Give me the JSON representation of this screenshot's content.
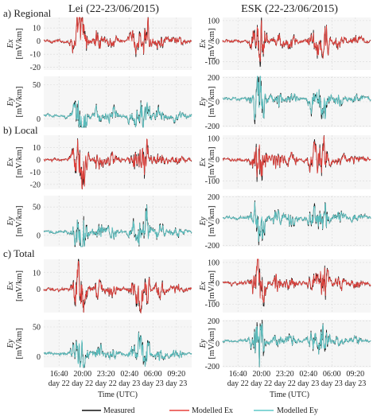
{
  "chart_data": {
    "type": "line",
    "columns": [
      {
        "id": "lei",
        "title": "Lei (22-23/06/2015)"
      },
      {
        "id": "esk",
        "title": "ESK (22-23/06/2015)"
      }
    ],
    "sections": [
      {
        "id": "regional",
        "label": "a) Regional"
      },
      {
        "id": "local",
        "label": "b) Local"
      },
      {
        "id": "total",
        "label": "c) Total"
      }
    ],
    "components": [
      {
        "id": "ex",
        "label_top": "Ex",
        "label_bottom": "[mV/km]",
        "model_color": "#e8413c"
      },
      {
        "id": "ey",
        "label_top": "Ey",
        "label_bottom": "[mV/km]",
        "model_color": "#5fc8c8"
      }
    ],
    "measured_color": "#111111",
    "x_ticks": [
      {
        "time": "16:40",
        "day": "day 22"
      },
      {
        "time": "20:00",
        "day": "day 22"
      },
      {
        "time": "23:20",
        "day": "day 22"
      },
      {
        "time": "02:40",
        "day": "day 23"
      },
      {
        "time": "06:00",
        "day": "day 23"
      },
      {
        "time": "09:20",
        "day": "day 23"
      }
    ],
    "x_range_hours": [
      14.5,
      35.5
    ],
    "x_tick_hours": [
      16.667,
      20.0,
      23.333,
      26.667,
      30.0,
      33.333
    ],
    "xlabel": "Time (UTC)",
    "panels": {
      "lei": {
        "regional": {
          "ex": {
            "ylim": [
              -22,
              18
            ],
            "yticks": [
              10,
              0,
              -10,
              -20
            ]
          },
          "ey": {
            "ylim": [
              -12,
              62
            ],
            "yticks": [
              50,
              0
            ]
          }
        },
        "local": {
          "ex": {
            "ylim": [
              -24,
              20
            ],
            "yticks": [
              10,
              0,
              -10,
              -20
            ]
          },
          "ey": {
            "ylim": [
              -20,
              70
            ],
            "yticks": [
              50,
              0
            ]
          }
        },
        "total": {
          "ex": {
            "ylim": [
              -14,
              18
            ],
            "yticks": [
              10,
              0
            ]
          },
          "ey": {
            "ylim": [
              -18,
              62
            ],
            "yticks": [
              50,
              0
            ]
          }
        }
      },
      "esk": {
        "regional": {
          "ex": {
            "ylim": [
              -140,
              115
            ],
            "yticks": [
              100,
              0,
              -100
            ]
          },
          "ey": {
            "ylim": [
              -210,
              210
            ],
            "yticks": [
              200,
              0,
              -200
            ]
          }
        },
        "local": {
          "ex": {
            "ylim": [
              -140,
              115
            ],
            "yticks": [
              100,
              0,
              -100
            ]
          },
          "ey": {
            "ylim": [
              -210,
              210
            ],
            "yticks": [
              200,
              0,
              -200
            ]
          }
        },
        "total": {
          "ex": {
            "ylim": [
              -140,
              115
            ],
            "yticks": [
              100,
              0,
              -100
            ]
          },
          "ey": {
            "ylim": [
              -210,
              210
            ],
            "yticks": [
              200,
              0,
              -200
            ]
          }
        }
      }
    },
    "legend": [
      {
        "name": "Measured",
        "color": "#111111"
      },
      {
        "name": "Modelled Ex",
        "color": "#e8413c"
      },
      {
        "name": "Modelled Ey",
        "color": "#5fc8c8"
      }
    ]
  }
}
